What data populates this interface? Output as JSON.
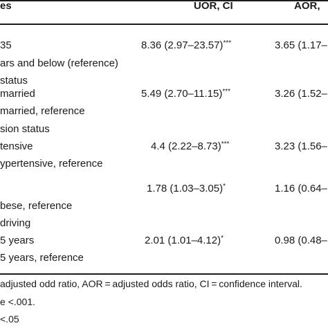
{
  "header": {
    "variables_label": "es",
    "uor_label": "UOR, CI",
    "aor_label": "AOR,"
  },
  "rows": [
    {
      "label": "35",
      "uor": "",
      "sup_uor": "",
      "aor": ""
    },
    {
      "label": "",
      "uor": "8.36 (2.97–23.57)",
      "sup_uor": "***",
      "aor": "3.65 (1.17–"
    },
    {
      "label": "ars and below (reference)",
      "uor": "",
      "sup_uor": "",
      "aor": ""
    },
    {
      "label": "status",
      "uor": "",
      "sup_uor": "",
      "aor": ""
    },
    {
      "label": "married",
      "uor": "5.49 (2.70–11.15)",
      "sup_uor": "***",
      "aor": "3.26 (1.52–"
    },
    {
      "label": "married, reference",
      "uor": "",
      "sup_uor": "",
      "aor": ""
    },
    {
      "label": "sion status",
      "uor": "",
      "sup_uor": "",
      "aor": ""
    },
    {
      "label": "tensive",
      "uor": "4.4 (2.22–8.73)",
      "sup_uor": "***",
      "aor": "3.23 (1.56–"
    },
    {
      "label": "ypertensive, reference",
      "uor": "",
      "sup_uor": "",
      "aor": ""
    },
    {
      "label": "",
      "uor": "1.78 (1.03–3.05)",
      "sup_uor": "*",
      "aor": "1.16 (0.64–"
    },
    {
      "label": "bese, reference",
      "uor": "",
      "sup_uor": "",
      "aor": ""
    },
    {
      "label": "driving",
      "uor": "",
      "sup_uor": "",
      "aor": ""
    },
    {
      "label": "5 years",
      "uor": "2.01 (1.01–4.12)",
      "sup_uor": "*",
      "aor": "0.98 (0.48–"
    },
    {
      "label": "5 years, reference",
      "uor": "",
      "sup_uor": "",
      "aor": ""
    }
  ],
  "footnotes": {
    "line1": "adjusted odd ratio, AOR = adjusted odds ratio, CI = confidence interval.",
    "line2": "e <.001.",
    "line3": "<.05"
  }
}
